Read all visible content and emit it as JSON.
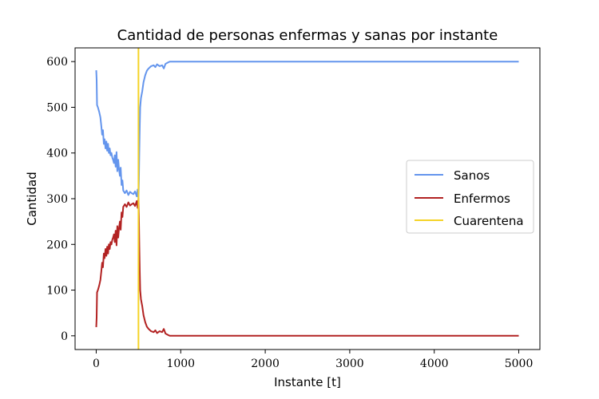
{
  "chart_data": {
    "type": "line",
    "title": "Cantidad de personas enfermas y sanas por instante",
    "xlabel": "Instante [t]",
    "ylabel": "Cantidad",
    "xlim": [
      -250,
      5250
    ],
    "ylim": [
      -30,
      630
    ],
    "xticks": [
      0,
      1000,
      2000,
      3000,
      4000,
      5000
    ],
    "yticks": [
      0,
      100,
      200,
      300,
      400,
      500,
      600
    ],
    "grid": false,
    "legend_position": "center-right",
    "series": [
      {
        "name": "Sanos",
        "color": "#6495ed",
        "x": [
          0,
          5,
          10,
          20,
          35,
          50,
          60,
          70,
          80,
          90,
          100,
          110,
          120,
          130,
          140,
          150,
          160,
          170,
          180,
          190,
          200,
          210,
          220,
          230,
          240,
          250,
          260,
          270,
          280,
          290,
          300,
          310,
          320,
          340,
          360,
          380,
          400,
          420,
          440,
          460,
          480,
          490,
          500,
          505,
          510,
          515,
          520,
          530,
          545,
          560,
          580,
          600,
          620,
          650,
          680,
          700,
          720,
          750,
          780,
          800,
          820,
          850,
          870,
          900,
          1000,
          2000,
          3000,
          4000,
          5000
        ],
        "y": [
          581,
          560,
          505,
          500,
          490,
          478,
          460,
          440,
          450,
          420,
          430,
          410,
          425,
          405,
          420,
          400,
          410,
          395,
          400,
          390,
          385,
          378,
          395,
          370,
          402,
          360,
          385,
          365,
          350,
          368,
          330,
          340,
          318,
          312,
          318,
          308,
          315,
          312,
          310,
          316,
          305,
          320,
          300,
          340,
          400,
          460,
          500,
          520,
          535,
          555,
          570,
          580,
          585,
          590,
          592,
          588,
          594,
          590,
          592,
          585,
          595,
          598,
          600,
          600,
          600,
          600,
          600,
          600,
          600
        ]
      },
      {
        "name": "Enfermos",
        "color": "#b22222",
        "x": [
          0,
          5,
          10,
          20,
          35,
          50,
          60,
          70,
          80,
          90,
          100,
          110,
          120,
          130,
          140,
          150,
          160,
          170,
          180,
          190,
          200,
          210,
          220,
          230,
          240,
          250,
          260,
          270,
          280,
          290,
          300,
          310,
          320,
          340,
          360,
          380,
          400,
          420,
          440,
          460,
          480,
          490,
          500,
          505,
          510,
          515,
          520,
          530,
          545,
          560,
          580,
          600,
          620,
          650,
          680,
          700,
          720,
          750,
          780,
          800,
          820,
          850,
          870,
          900,
          1000,
          2000,
          3000,
          4000,
          5000
        ],
        "y": [
          19,
          40,
          95,
          100,
          110,
          122,
          140,
          160,
          150,
          180,
          170,
          190,
          175,
          195,
          180,
          200,
          190,
          205,
          200,
          210,
          215,
          222,
          205,
          230,
          198,
          240,
          215,
          235,
          250,
          232,
          270,
          260,
          282,
          288,
          282,
          292,
          285,
          288,
          290,
          284,
          295,
          280,
          300,
          260,
          200,
          140,
          100,
          80,
          65,
          45,
          30,
          20,
          15,
          10,
          8,
          12,
          6,
          10,
          8,
          15,
          5,
          2,
          0,
          0,
          0,
          0,
          0,
          0,
          0
        ]
      }
    ],
    "vlines": [
      {
        "name": "Cuarentena",
        "x": 500,
        "color": "#f5d327"
      }
    ]
  }
}
